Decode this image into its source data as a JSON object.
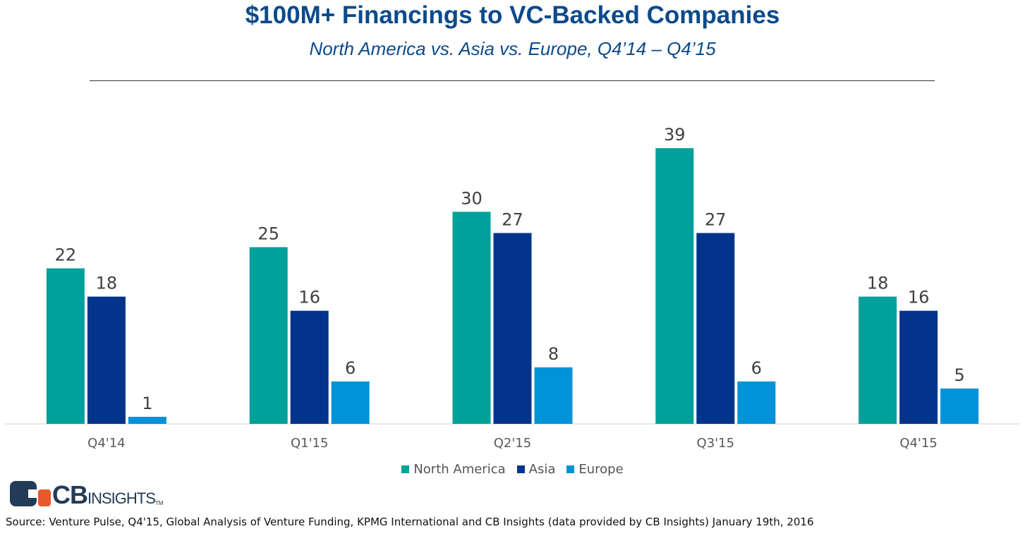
{
  "chart_data": {
    "type": "bar",
    "title": "$100M+ Financings to VC-Backed Companies",
    "subtitle": "North America vs. Asia vs. Europe, Q4’14 – Q4’15",
    "categories": [
      "Q4'14",
      "Q1'15",
      "Q2'15",
      "Q3'15",
      "Q4'15"
    ],
    "series": [
      {
        "name": "North America",
        "color": "#00a19a",
        "values": [
          22,
          25,
          30,
          39,
          18
        ]
      },
      {
        "name": "Asia",
        "color": "#03348b",
        "values": [
          18,
          16,
          27,
          27,
          16
        ]
      },
      {
        "name": "Europe",
        "color": "#0193d7",
        "values": [
          1,
          6,
          8,
          6,
          5
        ]
      }
    ],
    "ylim": [
      0,
      44
    ],
    "xlabel": "",
    "ylabel": "",
    "legend_position": "bottom-center"
  },
  "logo": {
    "cb": "CB",
    "insights": "INSIGHTS",
    "tm": "TM"
  },
  "source": "Source: Venture Pulse, Q4'15, Global Analysis of Venture Funding, KPMG International and CB Insights (data provided by CB Insights) January 19th, 2016"
}
